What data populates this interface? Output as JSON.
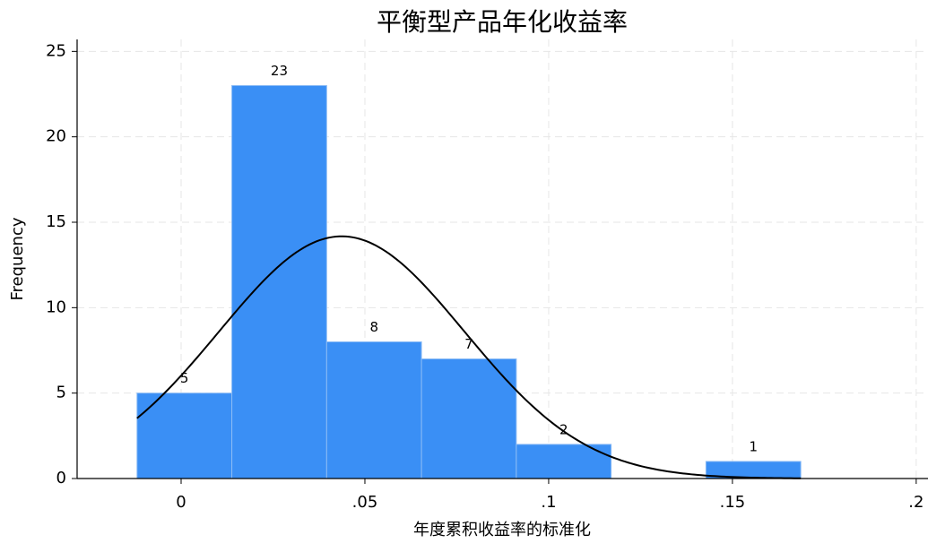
{
  "chart_data": {
    "type": "histogram",
    "title": "平衡型产品年化收益率",
    "x_label": "年度累积收益率的标准化",
    "y_label": "Frequency",
    "bins": [
      -0.012,
      0.0138,
      0.0396,
      0.0654,
      0.0912,
      0.117,
      0.1428,
      0.1686
    ],
    "values": [
      5,
      23,
      8,
      7,
      2,
      0,
      1
    ],
    "value_labels": [
      "5",
      "23",
      "8",
      "7",
      "2",
      null,
      "1"
    ],
    "color": "#3a8ff5",
    "normal_curve": {
      "mean": 0.0437,
      "sd": 0.0334,
      "color": "#000000"
    },
    "xlim": [
      -0.0283,
      0.2032
    ],
    "xticks": [
      0,
      {
        "value": 0.05,
        "label": ".05"
      },
      {
        "value": 0.1,
        "label": ".1"
      },
      {
        "value": 0.15,
        "label": ".15"
      },
      {
        "value": 0.2,
        "label": ".2"
      }
    ],
    "ylim": [
      0,
      25.7
    ],
    "yticks": [
      0,
      5,
      10,
      15,
      20,
      25
    ],
    "grid": true
  }
}
